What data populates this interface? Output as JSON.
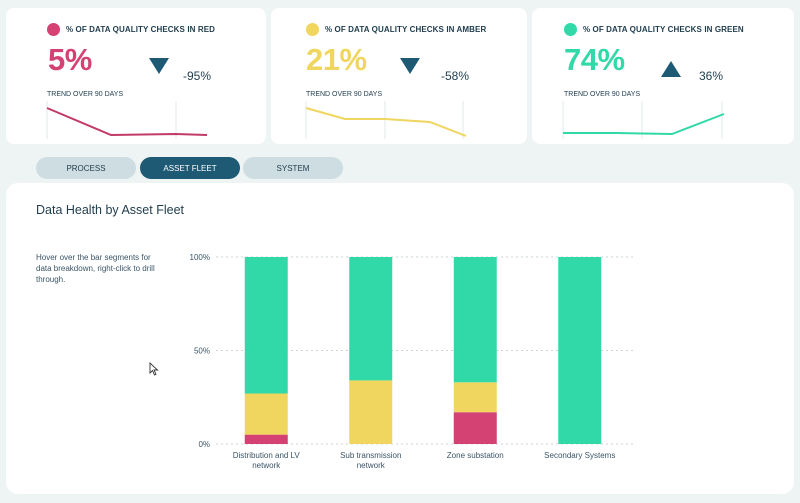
{
  "colors": {
    "red": "#d44173",
    "amber": "#f0d55e",
    "green": "#32d9a8",
    "navy": "#1f5a74",
    "text": "#1f3c4d"
  },
  "kpis": {
    "red": {
      "title": "% OF DATA QUALITY CHECKS IN RED",
      "value": "5%",
      "change": "-95%",
      "direction": "down",
      "trend_label": "TREND OVER 90 DAYS"
    },
    "amber": {
      "title": "% OF DATA QUALITY CHECKS IN AMBER",
      "value": "21%",
      "change": "-58%",
      "direction": "down",
      "trend_label": "TREND OVER 90 DAYS"
    },
    "green": {
      "title": "% OF DATA QUALITY CHECKS IN GREEN",
      "value": "74%",
      "change": "36%",
      "direction": "up",
      "trend_label": "TREND OVER 90 DAYS"
    }
  },
  "tabs": [
    {
      "label": "PROCESS",
      "active": false
    },
    {
      "label": "ASSET FLEET",
      "active": true
    },
    {
      "label": "SYSTEM",
      "active": false
    }
  ],
  "panel": {
    "title": "Data Health by Asset Fleet",
    "hint": "Hover over the bar segments for data breakdown, right-click to drill through."
  },
  "chart_data": {
    "type": "bar",
    "stacked": true,
    "percent": true,
    "categories": [
      [
        "Distribution and LV",
        "network"
      ],
      [
        "Sub transmission",
        "network"
      ],
      [
        "Zone substation"
      ],
      [
        "Secondary Systems"
      ]
    ],
    "series": [
      {
        "color": "#d44173",
        "values": [
          5,
          0,
          17,
          0
        ]
      },
      {
        "color": "#f0d55e",
        "values": [
          22,
          34,
          16,
          0
        ]
      },
      {
        "color": "#32d9a8",
        "values": [
          73,
          66,
          67,
          100
        ]
      }
    ],
    "yticks": [
      "100%",
      "50%",
      "0%"
    ],
    "ylim": [
      0,
      100
    ],
    "grid": true
  }
}
